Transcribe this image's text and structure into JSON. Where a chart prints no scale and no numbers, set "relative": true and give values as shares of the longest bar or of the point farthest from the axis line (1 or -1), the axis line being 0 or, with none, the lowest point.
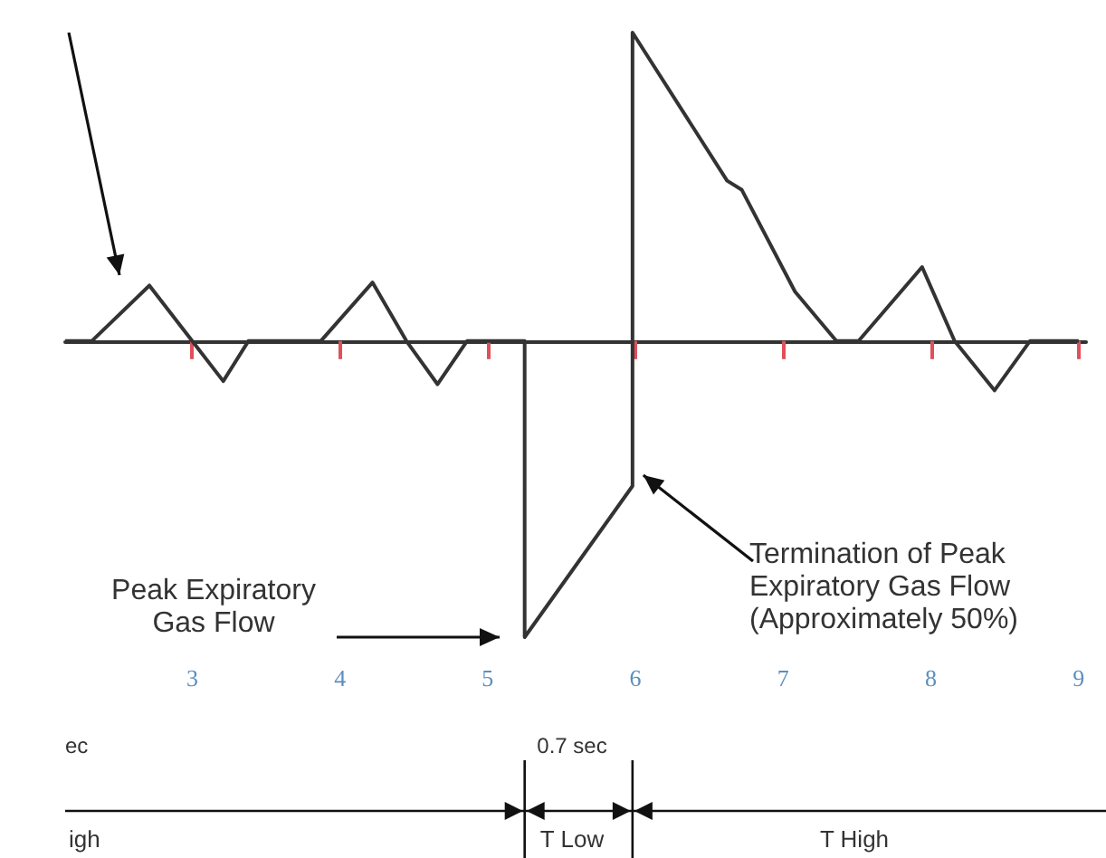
{
  "chart_data": {
    "type": "line",
    "relative": true,
    "color": "#333333",
    "marker": "none",
    "x": [
      2.14,
      2.32,
      2.71,
      3.0,
      3.21,
      3.38,
      3.87,
      4.22,
      4.45,
      4.66,
      4.86,
      5.25,
      5.25,
      5.98,
      5.98,
      6.62,
      6.72,
      7.08,
      7.36,
      7.51,
      7.94,
      8.16,
      8.43,
      8.67,
      9.0
    ],
    "values": [
      0,
      0,
      0.18,
      0,
      -0.13,
      0,
      0,
      0.19,
      0,
      -0.14,
      0,
      0,
      -0.96,
      -0.47,
      1,
      0.52,
      0.49,
      0.16,
      0,
      0,
      0.24,
      0,
      -0.16,
      0,
      0
    ],
    "xlim": [
      2.14,
      9.05
    ],
    "xticks": [
      3,
      4,
      5,
      6,
      7,
      8,
      9
    ],
    "grid": false,
    "annotations": [
      "Peak Expiratory Gas Flow",
      {
        "text": "Termination of Peak Expiratory Gas Flow (Approximately 50%)",
        "x": 5.98,
        "y": -0.47
      },
      "ec",
      "0.7 sec",
      "igh",
      "T Low",
      "T High"
    ]
  }
}
